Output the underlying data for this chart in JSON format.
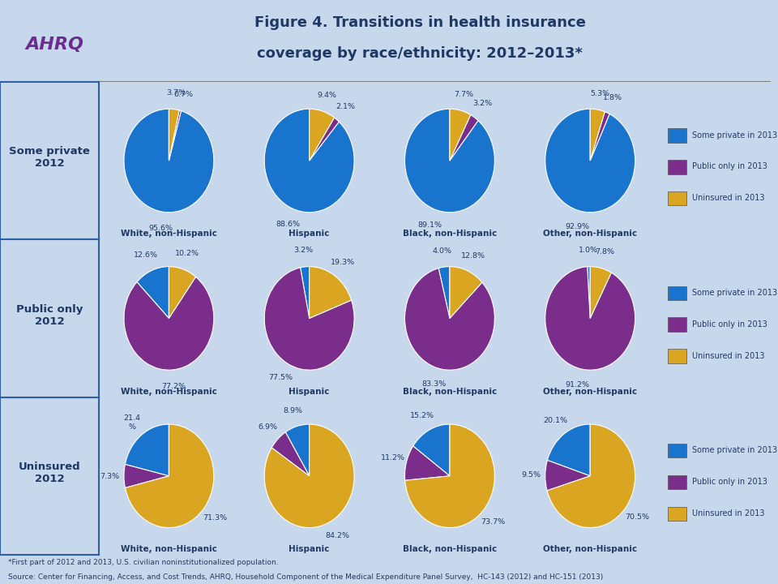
{
  "title_line1": "Figure 4. Transitions in health insurance",
  "title_line2": "coverage by race/ethnicity: 2012–2013*",
  "title_color": "#1F3864",
  "bg_color": "#C8D8EC",
  "panel_bg": "#EEF4FF",
  "label_bg": "#C8D8EC",
  "border_color": "#2E5FA3",
  "slice_colors": [
    "#1874CD",
    "#7B2D8B",
    "#DAA520"
  ],
  "row_labels": [
    "Some private\n2012",
    "Public only\n2012",
    "Uninsured\n2012"
  ],
  "col_labels": [
    "White, non-Hispanic",
    "Hispanic",
    "Black, non-Hispanic",
    "Other, non-Hispanic"
  ],
  "legend_labels": [
    "Some private in 2013",
    "Public only in 2013",
    "Uninsured in 2013"
  ],
  "data": [
    [
      {
        "values": [
          95.6,
          0.7,
          3.7
        ],
        "labels": [
          "95.6%",
          "0.7%",
          "3.7%"
        ]
      },
      {
        "values": [
          88.6,
          2.1,
          9.4
        ],
        "labels": [
          "88.6%",
          "2.1%",
          "9.4%"
        ]
      },
      {
        "values": [
          89.1,
          3.2,
          7.7
        ],
        "labels": [
          "89.1%",
          "3.2%",
          "7.7%"
        ]
      },
      {
        "values": [
          92.9,
          1.8,
          5.3
        ],
        "labels": [
          "92.9%",
          "1.8%",
          "5.3%"
        ]
      }
    ],
    [
      {
        "values": [
          12.6,
          77.2,
          10.2
        ],
        "labels": [
          "12.6%",
          "77.2%",
          "10.2%"
        ]
      },
      {
        "values": [
          3.2,
          77.5,
          19.3
        ],
        "labels": [
          "3.2%",
          "77.5%",
          "19.3%"
        ]
      },
      {
        "values": [
          4.0,
          83.3,
          12.8
        ],
        "labels": [
          "4.0%",
          "83.3%",
          "12.8%"
        ]
      },
      {
        "values": [
          1.0,
          91.2,
          7.8
        ],
        "labels": [
          "1.0%",
          "91.2%",
          "7.8%"
        ]
      }
    ],
    [
      {
        "values": [
          21.4,
          7.3,
          71.3
        ],
        "labels": [
          "21.4\n%",
          "7.3%",
          "71.3%"
        ]
      },
      {
        "values": [
          8.9,
          6.9,
          84.2
        ],
        "labels": [
          "8.9%",
          "6.9%",
          "84.2%"
        ]
      },
      {
        "values": [
          15.2,
          11.2,
          73.7
        ],
        "labels": [
          "15.2%",
          "11.2%",
          "73.7%"
        ]
      },
      {
        "values": [
          20.1,
          9.5,
          70.5
        ],
        "labels": [
          "20.1%",
          "9.5%",
          "70.5%"
        ]
      }
    ]
  ],
  "footnote1": "*First part of 2012 and 2013, U.S. civilian noninstitutionalized population.",
  "footnote2": "Source: Center for Financing, Access, and Cost Trends, AHRQ, Household Component of the Medical Expenditure Panel Survey,  HC-143 (2012) and HC-151 (2013)"
}
